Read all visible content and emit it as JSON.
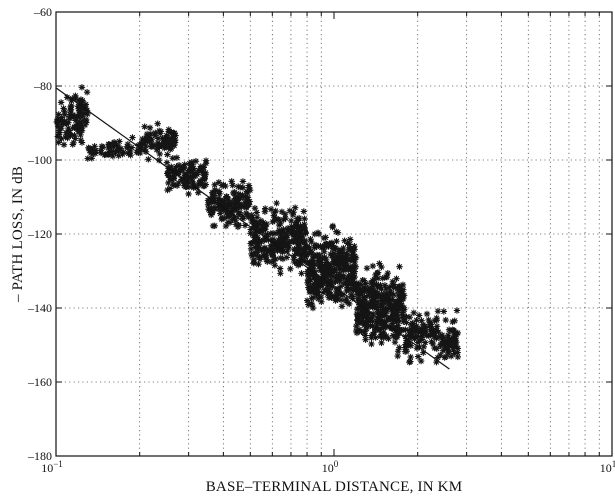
{
  "chart_data": {
    "type": "scatter",
    "title": "",
    "xlabel": "BASE–TERMINAL DISTANCE, IN KM",
    "ylabel": "– PATH LOSS, IN dB",
    "xscale": "log",
    "xlim": [
      0.1,
      10
    ],
    "ylim": [
      -180,
      -60
    ],
    "grid": true,
    "legend": "none",
    "marker": "asterisk",
    "x_ticks": [
      {
        "value": 0.1,
        "base": "10",
        "exp": "−1"
      },
      {
        "value": 1,
        "base": "10",
        "exp": "0"
      },
      {
        "value": 10,
        "base": "10",
        "exp": "1"
      }
    ],
    "y_ticks": [
      {
        "value": -60,
        "label": "–60"
      },
      {
        "value": -80,
        "label": "–80"
      },
      {
        "value": -100,
        "label": "–100"
      },
      {
        "value": -120,
        "label": "–120"
      },
      {
        "value": -140,
        "label": "–140"
      },
      {
        "value": -160,
        "label": "–160"
      },
      {
        "value": -180,
        "label": "–180"
      }
    ],
    "fit_line": {
      "x": [
        0.1,
        2.6
      ],
      "y": [
        -80.5,
        -156.5
      ]
    },
    "clusters": [
      {
        "x_min": 0.1,
        "x_max": 0.125,
        "y_center": -90,
        "y_spread": 10,
        "count": 90
      },
      {
        "x_min": 0.12,
        "x_max": 0.13,
        "y_center": -86,
        "y_spread": 6,
        "count": 25
      },
      {
        "x_min": 0.125,
        "x_max": 0.2,
        "y_center": -97,
        "y_spread": 4,
        "count": 60
      },
      {
        "x_min": 0.2,
        "x_max": 0.27,
        "y_center": -95,
        "y_spread": 6,
        "count": 90
      },
      {
        "x_min": 0.25,
        "x_max": 0.35,
        "y_center": -104,
        "y_spread": 6,
        "count": 110
      },
      {
        "x_min": 0.35,
        "x_max": 0.5,
        "y_center": -112,
        "y_spread": 8,
        "count": 150
      },
      {
        "x_min": 0.5,
        "x_max": 0.8,
        "y_center": -122,
        "y_spread": 12,
        "count": 260
      },
      {
        "x_min": 0.8,
        "x_max": 1.2,
        "y_center": -130,
        "y_spread": 14,
        "count": 340
      },
      {
        "x_min": 1.2,
        "x_max": 1.8,
        "y_center": -140,
        "y_spread": 15,
        "count": 330
      },
      {
        "x_min": 1.8,
        "x_max": 2.8,
        "y_center": -148,
        "y_spread": 9,
        "count": 160
      }
    ]
  }
}
